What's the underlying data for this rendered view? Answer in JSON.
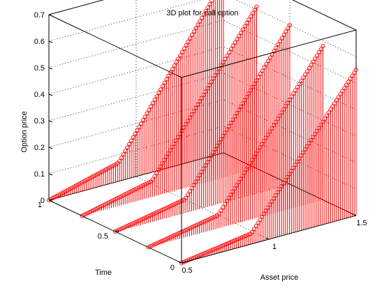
{
  "chart_data": {
    "type": "stem3",
    "title": "3D plot for call option",
    "xlabel": "Asset price",
    "ylabel": "Time",
    "zlabel": "Option price",
    "xlim": [
      0.5,
      1.5
    ],
    "ylim": [
      0,
      1
    ],
    "zlim": [
      0,
      0.7
    ],
    "x_ticks": [
      "0.5",
      "1",
      "1.5"
    ],
    "y_ticks": [
      "0",
      "0.5",
      "1"
    ],
    "z_ticks": [
      "0",
      "0.1",
      "0.2",
      "0.3",
      "0.4",
      "0.5",
      "0.6",
      "0.7"
    ],
    "grid": true,
    "box": true,
    "marker": "circle",
    "color": "#ff0000",
    "strike": 0.9,
    "asset_price_range": [
      0.5,
      1.5
    ],
    "points_per_curve": 90,
    "series": [
      {
        "time": 1.0,
        "values": [
          0.0,
          0.07,
          0.65
        ]
      },
      {
        "time": 0.75,
        "values": [
          0.0,
          0.06,
          0.61
        ]
      },
      {
        "time": 0.5,
        "values": [
          0.0,
          0.05,
          0.6
        ]
      },
      {
        "time": 0.25,
        "values": [
          0.0,
          0.05,
          0.58
        ]
      },
      {
        "time": 0.0,
        "values": [
          0.0,
          0.04,
          0.55
        ]
      }
    ],
    "curve_value_points": [
      0.5,
      0.9,
      1.5
    ]
  }
}
